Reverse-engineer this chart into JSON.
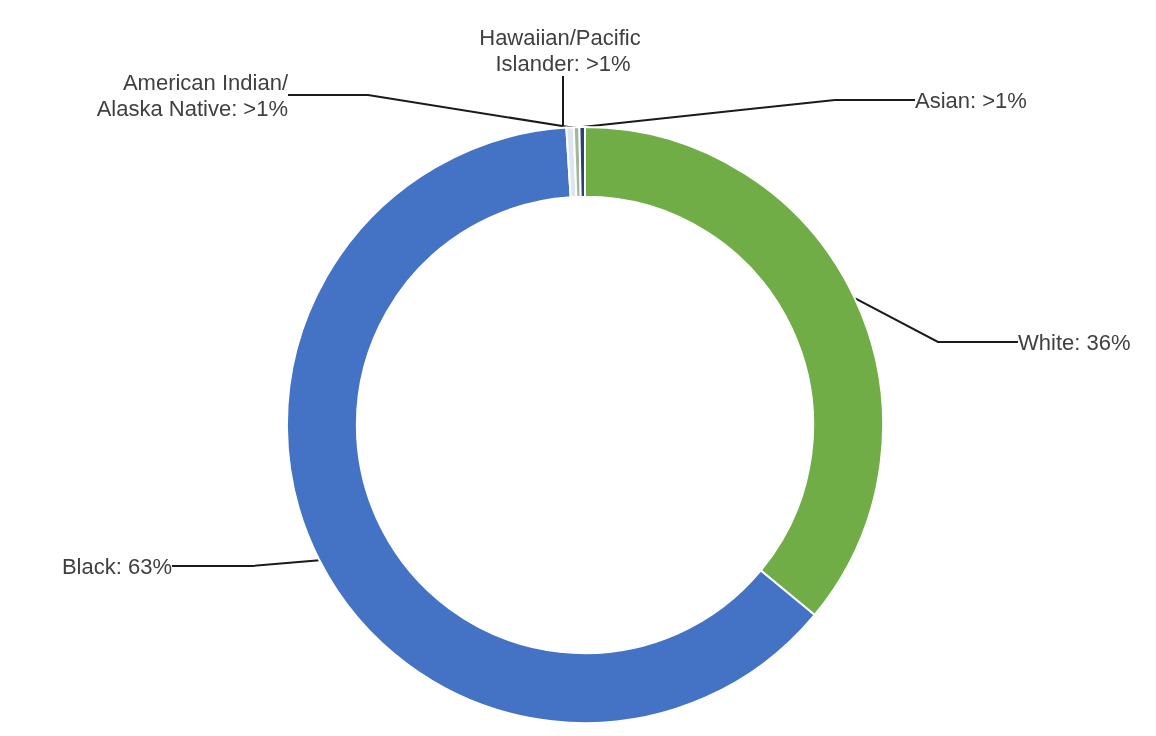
{
  "chart_data": {
    "type": "donut",
    "categories": [
      "White",
      "Black",
      "American Indian/Alaska Native",
      "Hawaiian/Pacific Islander",
      "Asian"
    ],
    "values": [
      36,
      63,
      0.4,
      0.3,
      0.3
    ],
    "value_labels": [
      "36%",
      "63%",
      ">1%",
      ">1%",
      ">1%"
    ],
    "colors": [
      "#70ad47",
      "#4472c4",
      "#dce6f2",
      "#a5b59a",
      "#264478"
    ],
    "legend": false
  }
}
